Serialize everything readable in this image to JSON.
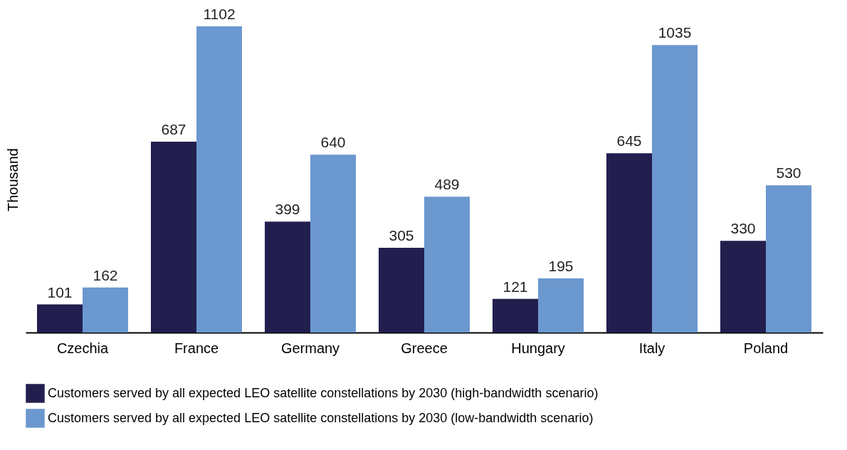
{
  "chart_data": {
    "type": "bar",
    "ylabel": "Thousand",
    "categories": [
      "Czechia",
      "France",
      "Germany",
      "Greece",
      "Hungary",
      "Italy",
      "Poland"
    ],
    "series": [
      {
        "name": "Customers served by all expected LEO satellite constellations by 2030 (high-bandwidth scenario)",
        "color": "#221f4f",
        "values": [
          101,
          687,
          399,
          305,
          121,
          645,
          330
        ]
      },
      {
        "name": "Customers served by all expected LEO satellite constellations by 2030 (low-bandwidth scenario)",
        "color": "#6b98cf",
        "values": [
          162,
          1102,
          640,
          489,
          195,
          1035,
          530
        ]
      }
    ],
    "data_labels": true,
    "grid": false,
    "legend": "bottom",
    "tick_labels": "x"
  }
}
